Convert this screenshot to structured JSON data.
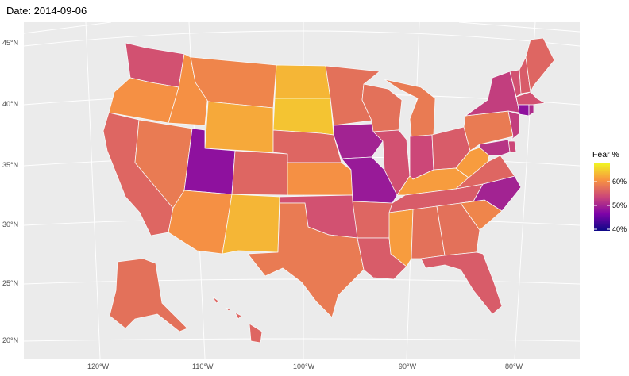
{
  "title": "Date: 2014-09-06",
  "legend": {
    "title": "Fear %",
    "labels": [
      "60%",
      "50%",
      "40%"
    ],
    "colors": [
      "#0d0887",
      "#7e03a8",
      "#cc4778",
      "#f89540",
      "#f0f921"
    ]
  },
  "axes": {
    "lat_labels": [
      "45°N",
      "40°N",
      "35°N",
      "30°N",
      "25°N",
      "20°N"
    ],
    "lon_labels": [
      "120°W",
      "110°W",
      "100°W",
      "90°W",
      "80°W"
    ]
  },
  "states": [
    {
      "abbr": "WA",
      "fear": 56
    },
    {
      "abbr": "OR",
      "fear": 62
    },
    {
      "abbr": "CA",
      "fear": 58
    },
    {
      "abbr": "ID",
      "fear": 62
    },
    {
      "abbr": "NV",
      "fear": 60
    },
    {
      "abbr": "MT",
      "fear": 61
    },
    {
      "abbr": "WY",
      "fear": 64
    },
    {
      "abbr": "UT",
      "fear": 49
    },
    {
      "abbr": "AZ",
      "fear": 62
    },
    {
      "abbr": "CO",
      "fear": 58
    },
    {
      "abbr": "NM",
      "fear": 65
    },
    {
      "abbr": "ND",
      "fear": 65
    },
    {
      "abbr": "SD",
      "fear": 66
    },
    {
      "abbr": "NE",
      "fear": 58
    },
    {
      "abbr": "KS",
      "fear": 62
    },
    {
      "abbr": "OK",
      "fear": 56
    },
    {
      "abbr": "TX",
      "fear": 60
    },
    {
      "abbr": "MN",
      "fear": 59
    },
    {
      "abbr": "IA",
      "fear": 51
    },
    {
      "abbr": "MO",
      "fear": 50
    },
    {
      "abbr": "AR",
      "fear": 58
    },
    {
      "abbr": "LA",
      "fear": 57
    },
    {
      "abbr": "WI",
      "fear": 59
    },
    {
      "abbr": "IL",
      "fear": 56
    },
    {
      "abbr": "MI",
      "fear": 60
    },
    {
      "abbr": "IN",
      "fear": 55
    },
    {
      "abbr": "OH",
      "fear": 57
    },
    {
      "abbr": "KY",
      "fear": 63
    },
    {
      "abbr": "TN",
      "fear": 57
    },
    {
      "abbr": "MS",
      "fear": 63
    },
    {
      "abbr": "AL",
      "fear": 59
    },
    {
      "abbr": "GA",
      "fear": 59
    },
    {
      "abbr": "FL",
      "fear": 57
    },
    {
      "abbr": "SC",
      "fear": 61
    },
    {
      "abbr": "NC",
      "fear": 51
    },
    {
      "abbr": "VA",
      "fear": 58
    },
    {
      "abbr": "WV",
      "fear": 63
    },
    {
      "abbr": "PA",
      "fear": 60
    },
    {
      "abbr": "NY",
      "fear": 54
    },
    {
      "abbr": "VT",
      "fear": 56
    },
    {
      "abbr": "NH",
      "fear": 57
    },
    {
      "abbr": "ME",
      "fear": 58
    },
    {
      "abbr": "MA",
      "fear": 56
    },
    {
      "abbr": "CT",
      "fear": 49
    },
    {
      "abbr": "RI",
      "fear": 52
    },
    {
      "abbr": "NJ",
      "fear": 54
    },
    {
      "abbr": "DE",
      "fear": 55
    },
    {
      "abbr": "MD",
      "fear": 53
    },
    {
      "abbr": "AK",
      "fear": 59
    },
    {
      "abbr": "HI",
      "fear": 58
    }
  ]
}
